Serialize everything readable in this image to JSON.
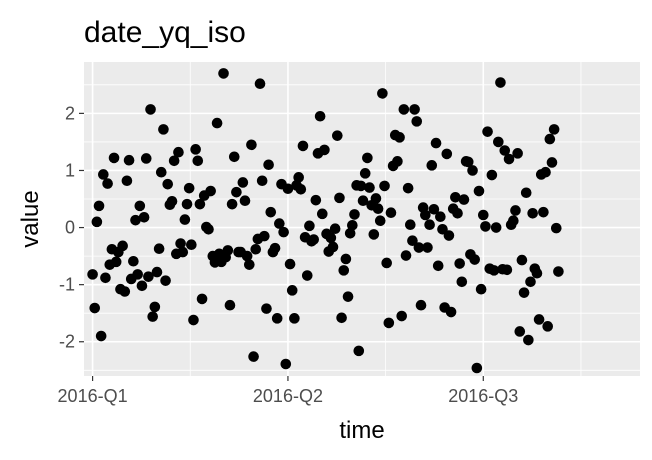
{
  "chart_data": {
    "type": "scatter",
    "title": "date_yq_iso",
    "xlabel": "time",
    "ylabel": "value",
    "x_ticks": [
      "2016-Q1",
      "2016-Q2",
      "2016-Q3"
    ],
    "y_ticks": [
      "-2",
      "-1",
      "0",
      "1",
      "2"
    ],
    "y_tick_values": [
      -2,
      -1,
      0,
      1,
      2
    ],
    "x_domain": [
      "2015-12-28",
      "2016-09-12"
    ],
    "ylim": [
      -2.6,
      2.9
    ],
    "grid": true,
    "panel_background": "#ebebeb",
    "point_color": "#000000",
    "points": [
      [
        "2016-01-01",
        -0.82
      ],
      [
        "2016-01-02",
        -1.41
      ],
      [
        "2016-01-03",
        0.1
      ],
      [
        "2016-01-04",
        0.38
      ],
      [
        "2016-01-05",
        -1.9
      ],
      [
        "2016-01-06",
        0.93
      ],
      [
        "2016-01-07",
        -0.88
      ],
      [
        "2016-01-08",
        0.77
      ],
      [
        "2016-01-09",
        -0.65
      ],
      [
        "2016-01-10",
        -0.38
      ],
      [
        "2016-01-11",
        1.22
      ],
      [
        "2016-01-12",
        -0.6
      ],
      [
        "2016-01-13",
        -0.43
      ],
      [
        "2016-01-14",
        -1.08
      ],
      [
        "2016-01-15",
        -0.32
      ],
      [
        "2016-01-16",
        -1.12
      ],
      [
        "2016-01-17",
        0.82
      ],
      [
        "2016-01-18",
        1.18
      ],
      [
        "2016-01-19",
        -0.9
      ],
      [
        "2016-01-20",
        -0.59
      ],
      [
        "2016-01-21",
        0.13
      ],
      [
        "2016-01-22",
        -0.82
      ],
      [
        "2016-01-23",
        0.38
      ],
      [
        "2016-01-24",
        -1.02
      ],
      [
        "2016-01-25",
        0.18
      ],
      [
        "2016-01-26",
        1.21
      ],
      [
        "2016-01-27",
        -0.86
      ],
      [
        "2016-01-28",
        2.07
      ],
      [
        "2016-01-29",
        -1.56
      ],
      [
        "2016-01-30",
        -1.39
      ],
      [
        "2016-01-31",
        -0.78
      ],
      [
        "2016-02-01",
        -0.37
      ],
      [
        "2016-02-02",
        0.97
      ],
      [
        "2016-02-03",
        1.72
      ],
      [
        "2016-02-04",
        -0.93
      ],
      [
        "2016-02-05",
        0.76
      ],
      [
        "2016-02-06",
        0.4
      ],
      [
        "2016-02-07",
        0.46
      ],
      [
        "2016-02-08",
        1.17
      ],
      [
        "2016-02-09",
        -0.46
      ],
      [
        "2016-02-10",
        1.32
      ],
      [
        "2016-02-11",
        -0.28
      ],
      [
        "2016-02-12",
        -0.43
      ],
      [
        "2016-02-13",
        0.14
      ],
      [
        "2016-02-14",
        0.41
      ],
      [
        "2016-02-15",
        0.69
      ],
      [
        "2016-02-16",
        -0.3
      ],
      [
        "2016-02-17",
        -1.62
      ],
      [
        "2016-02-18",
        1.37
      ],
      [
        "2016-02-19",
        1.17
      ],
      [
        "2016-02-20",
        0.41
      ],
      [
        "2016-02-21",
        -1.25
      ],
      [
        "2016-02-22",
        0.56
      ],
      [
        "2016-02-23",
        0.01
      ],
      [
        "2016-02-24",
        -0.03
      ],
      [
        "2016-02-25",
        0.64
      ],
      [
        "2016-02-26",
        -0.5
      ],
      [
        "2016-02-27",
        -0.61
      ],
      [
        "2016-02-28",
        1.83
      ],
      [
        "2016-02-29",
        -0.46
      ],
      [
        "2016-03-01",
        -0.6
      ],
      [
        "2016-03-02",
        2.7
      ],
      [
        "2016-03-03",
        -0.52
      ],
      [
        "2016-03-04",
        -0.4
      ],
      [
        "2016-03-05",
        -1.36
      ],
      [
        "2016-03-06",
        0.41
      ],
      [
        "2016-03-07",
        1.24
      ],
      [
        "2016-03-08",
        0.62
      ],
      [
        "2016-03-09",
        -0.43
      ],
      [
        "2016-03-10",
        -0.43
      ],
      [
        "2016-03-11",
        0.79
      ],
      [
        "2016-03-12",
        0.47
      ],
      [
        "2016-03-13",
        -0.5
      ],
      [
        "2016-03-14",
        -0.65
      ],
      [
        "2016-03-15",
        1.45
      ],
      [
        "2016-03-16",
        -2.26
      ],
      [
        "2016-03-17",
        -0.38
      ],
      [
        "2016-03-18",
        -0.2
      ],
      [
        "2016-03-19",
        2.52
      ],
      [
        "2016-03-20",
        0.82
      ],
      [
        "2016-03-21",
        -0.15
      ],
      [
        "2016-03-22",
        -1.42
      ],
      [
        "2016-03-23",
        1.1
      ],
      [
        "2016-03-24",
        0.27
      ],
      [
        "2016-03-25",
        -0.43
      ],
      [
        "2016-03-26",
        -0.36
      ],
      [
        "2016-03-27",
        -1.59
      ],
      [
        "2016-03-28",
        0.07
      ],
      [
        "2016-03-29",
        0.76
      ],
      [
        "2016-03-30",
        -0.08
      ],
      [
        "2016-03-31",
        -2.39
      ],
      [
        "2016-04-01",
        0.68
      ],
      [
        "2016-04-02",
        -0.64
      ],
      [
        "2016-04-03",
        -1.1
      ],
      [
        "2016-04-04",
        -1.59
      ],
      [
        "2016-04-05",
        0.74
      ],
      [
        "2016-04-06",
        0.88
      ],
      [
        "2016-04-07",
        0.67
      ],
      [
        "2016-04-08",
        1.43
      ],
      [
        "2016-04-09",
        -0.17
      ],
      [
        "2016-04-10",
        -0.84
      ],
      [
        "2016-04-11",
        0.03
      ],
      [
        "2016-04-12",
        -0.24
      ],
      [
        "2016-04-13",
        -0.21
      ],
      [
        "2016-04-14",
        0.48
      ],
      [
        "2016-04-15",
        1.3
      ],
      [
        "2016-04-16",
        1.95
      ],
      [
        "2016-04-17",
        0.24
      ],
      [
        "2016-04-18",
        1.36
      ],
      [
        "2016-04-19",
        -0.11
      ],
      [
        "2016-04-20",
        -0.42
      ],
      [
        "2016-04-21",
        -0.18
      ],
      [
        "2016-04-22",
        -0.34
      ],
      [
        "2016-04-23",
        -0.02
      ],
      [
        "2016-04-24",
        1.61
      ],
      [
        "2016-04-25",
        0.52
      ],
      [
        "2016-04-26",
        -1.58
      ],
      [
        "2016-04-27",
        -0.75
      ],
      [
        "2016-04-28",
        -0.55
      ],
      [
        "2016-04-29",
        -1.21
      ],
      [
        "2016-04-30",
        -0.1
      ],
      [
        "2016-05-01",
        0.04
      ],
      [
        "2016-05-02",
        0.23
      ],
      [
        "2016-05-03",
        0.74
      ],
      [
        "2016-05-04",
        -2.16
      ],
      [
        "2016-05-05",
        0.73
      ],
      [
        "2016-05-06",
        0.47
      ],
      [
        "2016-05-07",
        0.95
      ],
      [
        "2016-05-08",
        1.22
      ],
      [
        "2016-05-09",
        0.7
      ],
      [
        "2016-05-10",
        0.39
      ],
      [
        "2016-05-11",
        -0.12
      ],
      [
        "2016-05-12",
        0.51
      ],
      [
        "2016-05-13",
        0.33
      ],
      [
        "2016-05-14",
        0.12
      ],
      [
        "2016-05-15",
        2.35
      ],
      [
        "2016-05-16",
        0.73
      ],
      [
        "2016-05-17",
        -0.62
      ],
      [
        "2016-05-18",
        -1.67
      ],
      [
        "2016-05-19",
        0.26
      ],
      [
        "2016-05-20",
        1.08
      ],
      [
        "2016-05-21",
        1.62
      ],
      [
        "2016-05-22",
        1.16
      ],
      [
        "2016-05-23",
        1.58
      ],
      [
        "2016-05-24",
        -1.55
      ],
      [
        "2016-05-25",
        2.07
      ],
      [
        "2016-05-26",
        -0.49
      ],
      [
        "2016-05-27",
        0.69
      ],
      [
        "2016-05-28",
        0.05
      ],
      [
        "2016-05-29",
        -0.23
      ],
      [
        "2016-05-30",
        2.07
      ],
      [
        "2016-05-31",
        1.86
      ],
      [
        "2016-06-01",
        -0.35
      ],
      [
        "2016-06-02",
        -1.36
      ],
      [
        "2016-06-03",
        0.35
      ],
      [
        "2016-06-04",
        0.22
      ],
      [
        "2016-06-05",
        -0.35
      ],
      [
        "2016-06-06",
        0.05
      ],
      [
        "2016-06-07",
        1.09
      ],
      [
        "2016-06-08",
        0.32
      ],
      [
        "2016-06-09",
        1.48
      ],
      [
        "2016-06-10",
        -0.67
      ],
      [
        "2016-06-11",
        0.19
      ],
      [
        "2016-06-12",
        -0.03
      ],
      [
        "2016-06-13",
        -1.4
      ],
      [
        "2016-06-14",
        1.29
      ],
      [
        "2016-06-15",
        -0.14
      ],
      [
        "2016-06-16",
        -1.48
      ],
      [
        "2016-06-17",
        0.33
      ],
      [
        "2016-06-18",
        0.53
      ],
      [
        "2016-06-19",
        0.25
      ],
      [
        "2016-06-20",
        -0.63
      ],
      [
        "2016-06-21",
        -0.95
      ],
      [
        "2016-06-22",
        0.49
      ],
      [
        "2016-06-23",
        1.16
      ],
      [
        "2016-06-24",
        1.15
      ],
      [
        "2016-06-25",
        -0.47
      ],
      [
        "2016-06-26",
        1.0
      ],
      [
        "2016-06-27",
        -0.56
      ],
      [
        "2016-06-28",
        -2.46
      ],
      [
        "2016-06-29",
        0.64
      ],
      [
        "2016-06-30",
        -1.08
      ],
      [
        "2016-07-01",
        0.22
      ],
      [
        "2016-07-02",
        0.02
      ],
      [
        "2016-07-03",
        1.68
      ],
      [
        "2016-07-04",
        -0.72
      ],
      [
        "2016-07-05",
        0.92
      ],
      [
        "2016-07-06",
        -0.75
      ],
      [
        "2016-07-07",
        0.0
      ],
      [
        "2016-07-08",
        1.5
      ],
      [
        "2016-07-09",
        2.54
      ],
      [
        "2016-07-10",
        -0.73
      ],
      [
        "2016-07-11",
        1.35
      ],
      [
        "2016-07-12",
        -0.74
      ],
      [
        "2016-07-13",
        1.2
      ],
      [
        "2016-07-14",
        0.05
      ],
      [
        "2016-07-15",
        0.12
      ],
      [
        "2016-07-16",
        0.3
      ],
      [
        "2016-07-17",
        1.3
      ],
      [
        "2016-07-18",
        -1.82
      ],
      [
        "2016-07-19",
        -0.57
      ],
      [
        "2016-07-20",
        -1.14
      ],
      [
        "2016-07-21",
        0.61
      ],
      [
        "2016-07-22",
        -1.97
      ],
      [
        "2016-07-23",
        -0.95
      ],
      [
        "2016-07-24",
        0.25
      ],
      [
        "2016-07-25",
        -0.72
      ],
      [
        "2016-07-26",
        -0.8
      ],
      [
        "2016-07-27",
        -1.61
      ],
      [
        "2016-07-28",
        0.93
      ],
      [
        "2016-07-29",
        0.27
      ],
      [
        "2016-07-30",
        0.97
      ],
      [
        "2016-07-31",
        -1.73
      ],
      [
        "2016-08-01",
        1.55
      ],
      [
        "2016-08-02",
        1.14
      ],
      [
        "2016-08-03",
        1.72
      ],
      [
        "2016-08-04",
        -0.01
      ],
      [
        "2016-08-05",
        -0.77
      ]
    ]
  }
}
